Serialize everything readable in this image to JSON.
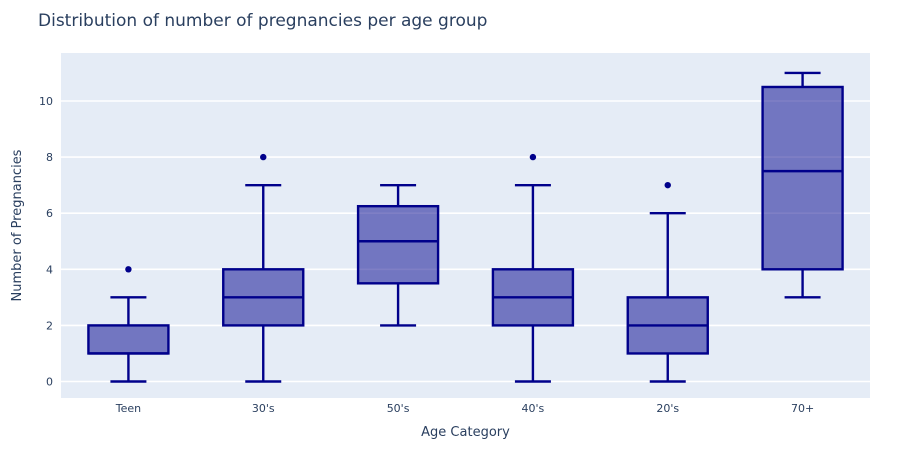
{
  "chart_data": {
    "type": "box",
    "title": "Distribution of number of pregnancies per age group",
    "xlabel": "Age Category",
    "ylabel": "Number of Pregnancies",
    "categories": [
      "Teen",
      "30's",
      "50's",
      "40's",
      "20's",
      "70+"
    ],
    "series": [
      {
        "name": "Teen",
        "min": 0,
        "q1": 1,
        "median": 1,
        "q3": 2,
        "max": 3,
        "outliers": [
          4
        ]
      },
      {
        "name": "30's",
        "min": 0,
        "q1": 2,
        "median": 3,
        "q3": 4,
        "max": 7,
        "outliers": [
          8
        ]
      },
      {
        "name": "50's",
        "min": 2,
        "q1": 3.5,
        "median": 5,
        "q3": 6.25,
        "max": 7,
        "outliers": []
      },
      {
        "name": "40's",
        "min": 0,
        "q1": 2,
        "median": 3,
        "q3": 4,
        "max": 7,
        "outliers": [
          8
        ]
      },
      {
        "name": "20's",
        "min": 0,
        "q1": 1,
        "median": 2,
        "q3": 3,
        "max": 6,
        "outliers": [
          7
        ]
      },
      {
        "name": "70+",
        "min": 3,
        "q1": 4,
        "median": 7.5,
        "q3": 10.5,
        "max": 11,
        "outliers": []
      }
    ],
    "yticks": [
      0,
      2,
      4,
      6,
      8,
      10
    ],
    "ylim": [
      -0.6,
      11.75
    ],
    "grid": true,
    "legend": "none",
    "colors": {
      "box_line": "#00008b",
      "box_fill": "rgba(0,0,139,0.5)",
      "plot_bg": "#e5ecf6",
      "paper_bg": "#ffffff",
      "grid": "#ffffff",
      "text": "#2a3f5f"
    }
  }
}
